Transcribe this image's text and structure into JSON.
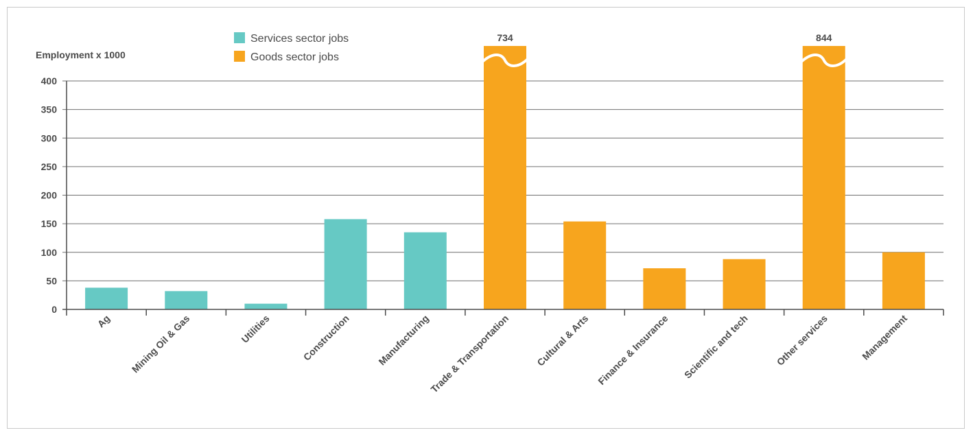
{
  "chart_data": {
    "type": "bar",
    "ylabel": "Employment x 1000",
    "ylim": [
      0,
      400
    ],
    "yticks": [
      0,
      50,
      100,
      150,
      200,
      250,
      300,
      350,
      400
    ],
    "grid": true,
    "legend_placement": "top-center",
    "axis_break": true,
    "categories": [
      "Ag",
      "Mining Oil & Gas",
      "Utilities",
      "Construction",
      "Manufacturing",
      "Trade & Transportation",
      "Cultural & Arts",
      "Finance & Insurance",
      "Scientific and tech",
      "Other services",
      "Management"
    ],
    "values": [
      38,
      32,
      10,
      158,
      135,
      734,
      154,
      72,
      88,
      844,
      100
    ],
    "sector": [
      "services",
      "services",
      "services",
      "services",
      "services",
      "goods",
      "goods",
      "goods",
      "goods",
      "goods",
      "goods"
    ],
    "data_labels": [
      "",
      "",
      "",
      "",
      "",
      "734",
      "",
      "",
      "",
      "844",
      ""
    ],
    "legend": [
      {
        "key": "services",
        "label": "Services sector jobs",
        "color": "#66c9c4"
      },
      {
        "key": "goods",
        "label": "Goods sector jobs",
        "color": "#f7a51e"
      }
    ],
    "colors": {
      "services": "#66c9c4",
      "goods": "#f7a51e",
      "grid": "#6f6f6f",
      "axis": "#4a4a4a"
    }
  }
}
